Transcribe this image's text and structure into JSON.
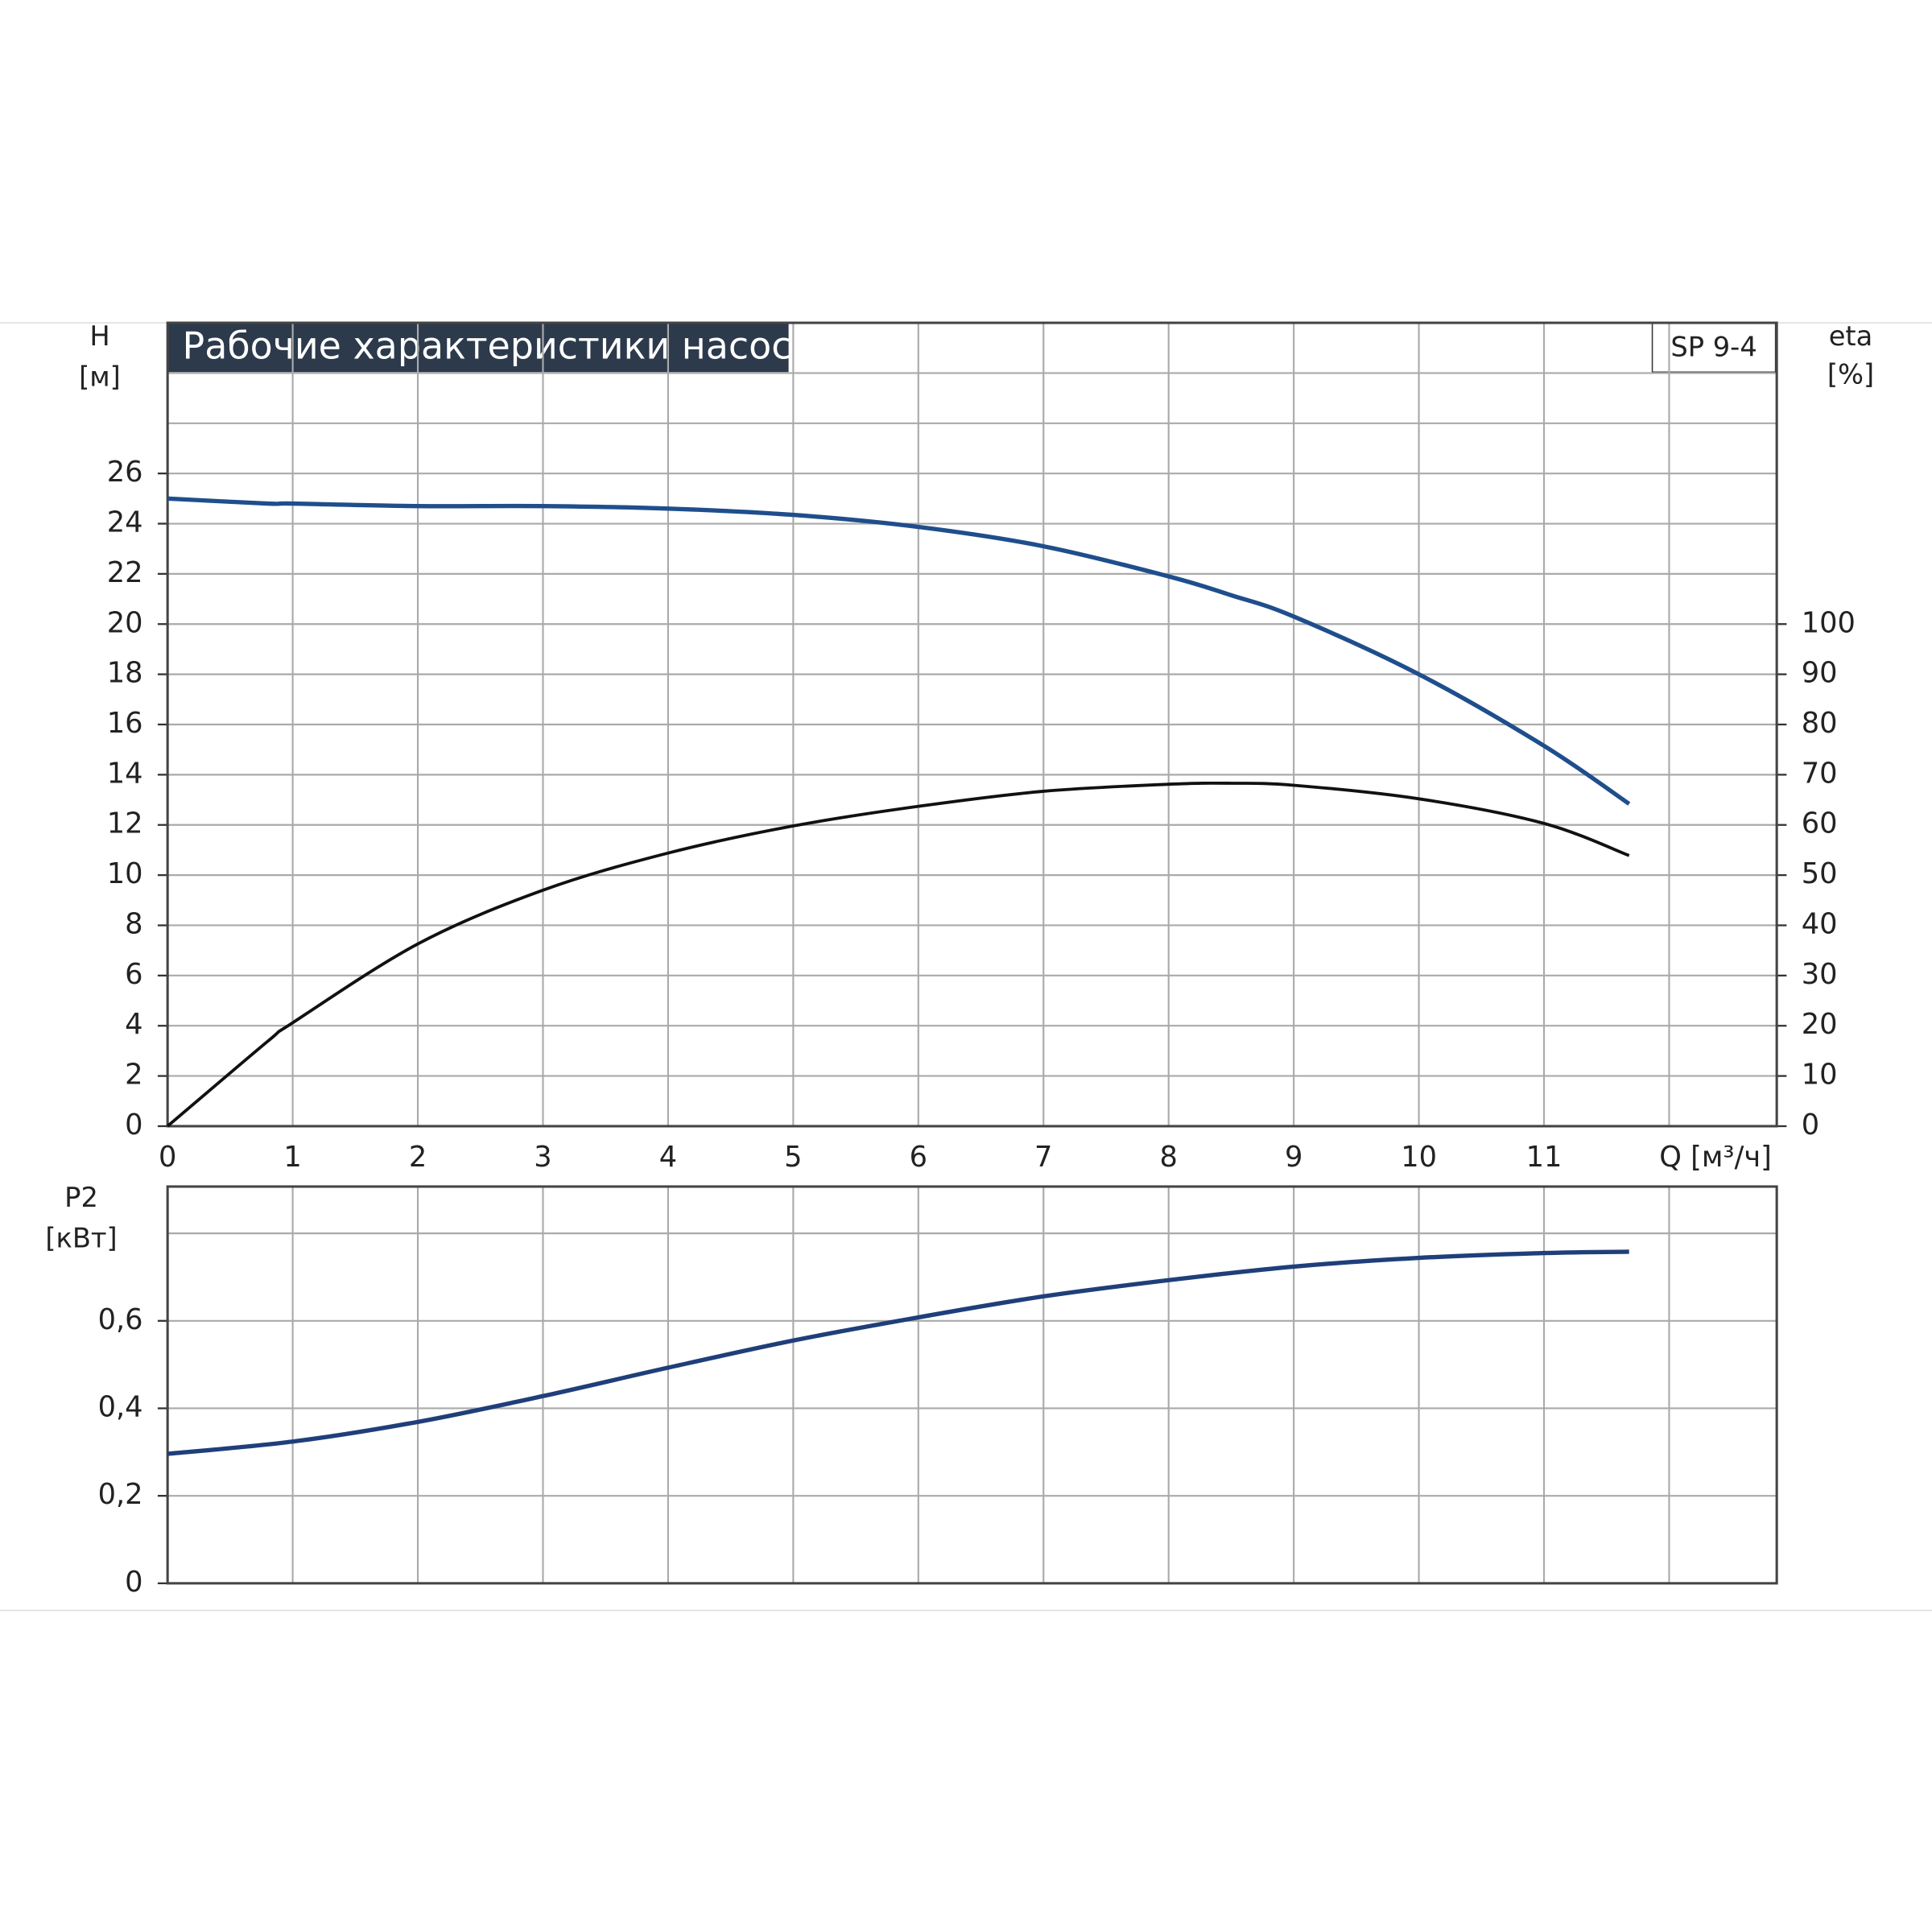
{
  "chart_data": [
    {
      "type": "line",
      "title": "Рабочие характеристики насоса",
      "model": "SP 9-4",
      "y_label": "H",
      "y_unit": "[м]",
      "y2_label": "eta",
      "y2_unit": "[%]",
      "x": [
        0,
        0.8,
        1,
        2,
        3,
        4,
        5,
        6,
        7,
        8,
        8.5,
        9,
        10,
        11,
        11.68
      ],
      "xlim": [
        0,
        12.86
      ],
      "xticks": [
        0,
        1,
        2,
        3,
        4,
        5,
        6,
        7,
        8,
        9,
        10,
        11,
        {
          "value": 12,
          "label": "Q [м³/ч]"
        }
      ],
      "ylim": [
        0,
        32
      ],
      "yticks": [
        0,
        2,
        4,
        6,
        8,
        10,
        12,
        14,
        16,
        18,
        20,
        22,
        24,
        26
      ],
      "y2lim": [
        0,
        160
      ],
      "y2ticks": [
        0,
        10,
        20,
        30,
        40,
        50,
        60,
        70,
        80,
        90,
        100
      ],
      "grid": true,
      "series": [
        {
          "color": "#1f4e8c",
          "values": [
            25.0,
            24.8,
            24.8,
            24.7,
            24.7,
            24.6,
            24.35,
            23.87,
            23.1,
            21.9,
            21.15,
            20.3,
            18.0,
            15.15,
            12.84
          ]
        },
        {
          "color": "#111111",
          "axis": "y2",
          "values": [
            0,
            16.9,
            20.6,
            36.3,
            47,
            54.4,
            59.8,
            63.7,
            66.7,
            68.1,
            68.3,
            67.9,
            65.2,
            60.3,
            53.9
          ]
        }
      ]
    },
    {
      "type": "line",
      "y_label": "P2",
      "y_unit": "[кВт]",
      "x": [
        0,
        1,
        2,
        3,
        4,
        5,
        6,
        7,
        8,
        9,
        10,
        11,
        11.68
      ],
      "xlim": [
        0,
        12.86
      ],
      "xticks": [
        0,
        1,
        2,
        3,
        4,
        5,
        6,
        7,
        8,
        9,
        10,
        11,
        12
      ],
      "ylim": [
        0,
        0.907
      ],
      "yticks": [
        0,
        {
          "value": 0.2,
          "label": "0,2"
        },
        {
          "value": 0.4,
          "label": "0,4"
        },
        {
          "value": 0.6,
          "label": "0,6"
        }
      ],
      "grid": true,
      "series": [
        {
          "color": "#1f3f7a",
          "values": [
            0.296,
            0.324,
            0.369,
            0.428,
            0.493,
            0.555,
            0.608,
            0.656,
            0.693,
            0.724,
            0.744,
            0.755,
            0.758
          ]
        }
      ]
    }
  ]
}
